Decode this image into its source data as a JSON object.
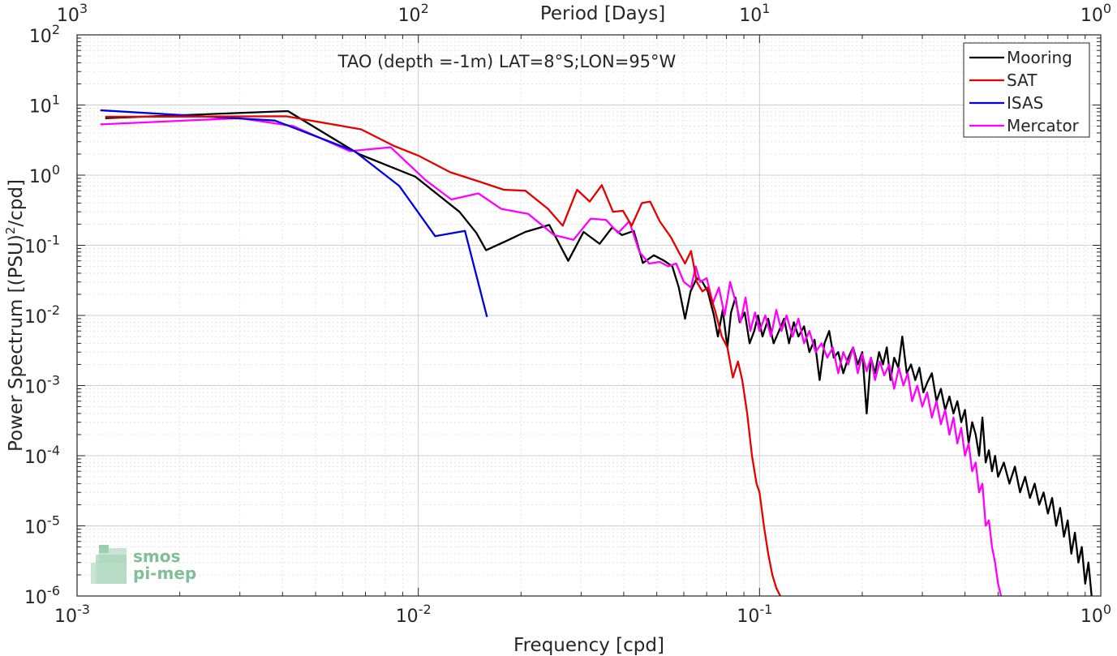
{
  "chart_data": {
    "type": "line",
    "title": "TAO (depth =-1m) LAT=8°S;LON=95°W",
    "xlabel": "Frequency [cpd]",
    "ylabel": "Power Spectrum [(PSU)",
    "ylabel_sup": "2",
    "ylabel_end": "/cpd]",
    "top_xlabel": "Period [Days]",
    "xscale": "log",
    "yscale": "log",
    "xlim": [
      0.001,
      1
    ],
    "ylim": [
      1e-06,
      100
    ],
    "grid": true,
    "legend_position": "top-right",
    "x_ticks": [
      0.001,
      0.01,
      0.1,
      1
    ],
    "x_tick_labels": [
      {
        "base": "10",
        "exp": "-3"
      },
      {
        "base": "10",
        "exp": "-2"
      },
      {
        "base": "10",
        "exp": "-1"
      },
      {
        "base": "10",
        "exp": "0"
      }
    ],
    "y_ticks": [
      100,
      10,
      1,
      0.1,
      0.01,
      0.001,
      0.0001,
      1e-05,
      1e-06
    ],
    "y_tick_labels": [
      {
        "base": "10",
        "exp": "2"
      },
      {
        "base": "10",
        "exp": "1"
      },
      {
        "base": "10",
        "exp": "0"
      },
      {
        "base": "10",
        "exp": "-1"
      },
      {
        "base": "10",
        "exp": "-2"
      },
      {
        "base": "10",
        "exp": "-3"
      },
      {
        "base": "10",
        "exp": "-4"
      },
      {
        "base": "10",
        "exp": "-5"
      },
      {
        "base": "10",
        "exp": "-6"
      }
    ],
    "top_ticks": [
      1000,
      100,
      10,
      1
    ],
    "top_tick_labels": [
      {
        "base": "10",
        "exp": "3"
      },
      {
        "base": "10",
        "exp": "2"
      },
      {
        "base": "10",
        "exp": "1"
      },
      {
        "base": "10",
        "exp": "0"
      }
    ],
    "series": [
      {
        "name": "Mooring",
        "color": "#000000",
        "points": [
          [
            0.00121,
            6.5
          ],
          [
            0.00415,
            8.2
          ],
          [
            0.0067,
            2.0
          ],
          [
            0.0098,
            0.95
          ],
          [
            0.0132,
            0.3
          ],
          [
            0.0148,
            0.15
          ],
          [
            0.0158,
            0.085
          ],
          [
            0.0181,
            0.115
          ],
          [
            0.0206,
            0.155
          ],
          [
            0.0242,
            0.195
          ],
          [
            0.0275,
            0.06
          ],
          [
            0.0305,
            0.155
          ],
          [
            0.034,
            0.105
          ],
          [
            0.037,
            0.18
          ],
          [
            0.0395,
            0.14
          ],
          [
            0.0428,
            0.16
          ],
          [
            0.0455,
            0.056
          ],
          [
            0.049,
            0.072
          ],
          [
            0.0526,
            0.06
          ],
          [
            0.0555,
            0.05
          ],
          [
            0.058,
            0.025
          ],
          [
            0.0605,
            0.009
          ],
          [
            0.0628,
            0.022
          ],
          [
            0.0655,
            0.034
          ],
          [
            0.068,
            0.03
          ],
          [
            0.0705,
            0.022
          ],
          [
            0.0735,
            0.01
          ],
          [
            0.0755,
            0.005
          ],
          [
            0.078,
            0.012
          ],
          [
            0.0805,
            0.0035
          ],
          [
            0.0825,
            0.011
          ],
          [
            0.085,
            0.018
          ],
          [
            0.0875,
            0.008
          ],
          [
            0.0905,
            0.011
          ],
          [
            0.0935,
            0.004
          ],
          [
            0.0965,
            0.006
          ],
          [
            0.099,
            0.01
          ],
          [
            0.102,
            0.005
          ],
          [
            0.106,
            0.009
          ],
          [
            0.11,
            0.004
          ],
          [
            0.114,
            0.006
          ],
          [
            0.118,
            0.009
          ],
          [
            0.122,
            0.004
          ],
          [
            0.126,
            0.008
          ],
          [
            0.13,
            0.005
          ],
          [
            0.135,
            0.007
          ],
          [
            0.14,
            0.003
          ],
          [
            0.145,
            0.0045
          ],
          [
            0.15,
            0.0012
          ],
          [
            0.155,
            0.004
          ],
          [
            0.16,
            0.006
          ],
          [
            0.165,
            0.0025
          ],
          [
            0.17,
            0.003
          ],
          [
            0.176,
            0.0015
          ],
          [
            0.182,
            0.0025
          ],
          [
            0.188,
            0.0035
          ],
          [
            0.194,
            0.002
          ],
          [
            0.2,
            0.003
          ],
          [
            0.206,
            0.0004
          ],
          [
            0.212,
            0.0025
          ],
          [
            0.218,
            0.0015
          ],
          [
            0.224,
            0.003
          ],
          [
            0.23,
            0.002
          ],
          [
            0.236,
            0.0035
          ],
          [
            0.242,
            0.0012
          ],
          [
            0.248,
            0.0025
          ],
          [
            0.255,
            0.0018
          ],
          [
            0.262,
            0.005
          ],
          [
            0.27,
            0.0015
          ],
          [
            0.278,
            0.002
          ],
          [
            0.286,
            0.0012
          ],
          [
            0.294,
            0.0018
          ],
          [
            0.302,
            0.0008
          ],
          [
            0.31,
            0.0011
          ],
          [
            0.32,
            0.0015
          ],
          [
            0.33,
            0.0006
          ],
          [
            0.34,
            0.0009
          ],
          [
            0.35,
            0.00045
          ],
          [
            0.36,
            0.0007
          ],
          [
            0.37,
            0.0004
          ],
          [
            0.38,
            0.0006
          ],
          [
            0.39,
            0.0003
          ],
          [
            0.4,
            0.00045
          ],
          [
            0.41,
            0.00015
          ],
          [
            0.42,
            0.0003
          ],
          [
            0.43,
            0.0002
          ],
          [
            0.44,
            0.0001
          ],
          [
            0.45,
            0.00035
          ],
          [
            0.46,
            8e-05
          ],
          [
            0.47,
            0.00012
          ],
          [
            0.48,
            6e-05
          ],
          [
            0.49,
            0.0001
          ],
          [
            0.5,
            5e-05
          ],
          [
            0.52,
            8e-05
          ],
          [
            0.54,
            4e-05
          ],
          [
            0.56,
            7e-05
          ],
          [
            0.58,
            3e-05
          ],
          [
            0.6,
            5e-05
          ],
          [
            0.62,
            2.5e-05
          ],
          [
            0.64,
            4e-05
          ],
          [
            0.66,
            2e-05
          ],
          [
            0.68,
            3e-05
          ],
          [
            0.7,
            1.5e-05
          ],
          [
            0.72,
            2.5e-05
          ],
          [
            0.74,
            1e-05
          ],
          [
            0.76,
            1.8e-05
          ],
          [
            0.78,
            7e-06
          ],
          [
            0.8,
            1.2e-05
          ],
          [
            0.82,
            4e-06
          ],
          [
            0.84,
            8e-06
          ],
          [
            0.86,
            3e-06
          ],
          [
            0.88,
            5e-06
          ],
          [
            0.9,
            1.5e-06
          ],
          [
            0.92,
            3e-06
          ],
          [
            0.94,
            1e-06
          ]
        ]
      },
      {
        "name": "SAT",
        "color": "#e60000",
        "points": [
          [
            0.00121,
            6.8
          ],
          [
            0.0041,
            6.9
          ],
          [
            0.0068,
            4.5
          ],
          [
            0.0085,
            2.6
          ],
          [
            0.01,
            1.9
          ],
          [
            0.0124,
            1.1
          ],
          [
            0.0152,
            0.8
          ],
          [
            0.0178,
            0.62
          ],
          [
            0.0206,
            0.6
          ],
          [
            0.024,
            0.33
          ],
          [
            0.0265,
            0.19
          ],
          [
            0.0292,
            0.62
          ],
          [
            0.0318,
            0.42
          ],
          [
            0.0345,
            0.72
          ],
          [
            0.0372,
            0.3
          ],
          [
            0.0398,
            0.31
          ],
          [
            0.0422,
            0.19
          ],
          [
            0.0452,
            0.4
          ],
          [
            0.0478,
            0.42
          ],
          [
            0.051,
            0.22
          ],
          [
            0.055,
            0.13
          ],
          [
            0.058,
            0.08
          ],
          [
            0.0605,
            0.055
          ],
          [
            0.063,
            0.083
          ],
          [
            0.0655,
            0.03
          ],
          [
            0.068,
            0.022
          ],
          [
            0.0705,
            0.025
          ],
          [
            0.074,
            0.012
          ],
          [
            0.0775,
            0.005
          ],
          [
            0.0805,
            0.0035
          ],
          [
            0.0835,
            0.0013
          ],
          [
            0.0865,
            0.0022
          ],
          [
            0.089,
            0.0012
          ],
          [
            0.092,
            0.0004
          ],
          [
            0.095,
            0.0001
          ],
          [
            0.098,
            4e-05
          ],
          [
            0.1,
            3e-05
          ],
          [
            0.103,
            1e-05
          ],
          [
            0.106,
            4e-06
          ],
          [
            0.109,
            2e-06
          ],
          [
            0.112,
            1.3e-06
          ],
          [
            0.115,
            1e-06
          ]
        ]
      },
      {
        "name": "ISAS",
        "color": "#0000e6",
        "points": [
          [
            0.00117,
            8.4
          ],
          [
            0.0038,
            6.0
          ],
          [
            0.0065,
            2.2
          ],
          [
            0.0088,
            0.7
          ],
          [
            0.0112,
            0.135
          ],
          [
            0.0137,
            0.16
          ],
          [
            0.0159,
            0.0095
          ]
        ]
      },
      {
        "name": "Mercator",
        "color": "#ff00ff",
        "points": [
          [
            0.00117,
            5.3
          ],
          [
            0.003,
            6.5
          ],
          [
            0.0043,
            5.0
          ],
          [
            0.0063,
            2.2
          ],
          [
            0.0083,
            2.5
          ],
          [
            0.0105,
            0.85
          ],
          [
            0.0125,
            0.45
          ],
          [
            0.015,
            0.55
          ],
          [
            0.0175,
            0.33
          ],
          [
            0.021,
            0.28
          ],
          [
            0.025,
            0.14
          ],
          [
            0.0285,
            0.12
          ],
          [
            0.032,
            0.24
          ],
          [
            0.0355,
            0.23
          ],
          [
            0.0385,
            0.15
          ],
          [
            0.0415,
            0.22
          ],
          [
            0.0445,
            0.08
          ],
          [
            0.0475,
            0.055
          ],
          [
            0.051,
            0.058
          ],
          [
            0.054,
            0.05
          ],
          [
            0.057,
            0.055
          ],
          [
            0.06,
            0.03
          ],
          [
            0.063,
            0.025
          ],
          [
            0.065,
            0.05
          ],
          [
            0.067,
            0.03
          ],
          [
            0.07,
            0.034
          ],
          [
            0.073,
            0.015
          ],
          [
            0.076,
            0.025
          ],
          [
            0.079,
            0.01
          ],
          [
            0.082,
            0.03
          ],
          [
            0.085,
            0.016
          ],
          [
            0.088,
            0.008
          ],
          [
            0.091,
            0.018
          ],
          [
            0.094,
            0.006
          ],
          [
            0.097,
            0.011
          ],
          [
            0.1,
            0.006
          ],
          [
            0.104,
            0.01
          ],
          [
            0.108,
            0.005
          ],
          [
            0.112,
            0.012
          ],
          [
            0.116,
            0.006
          ],
          [
            0.12,
            0.01
          ],
          [
            0.125,
            0.005
          ],
          [
            0.13,
            0.009
          ],
          [
            0.135,
            0.004
          ],
          [
            0.14,
            0.006
          ],
          [
            0.146,
            0.003
          ],
          [
            0.152,
            0.004
          ],
          [
            0.158,
            0.0025
          ],
          [
            0.164,
            0.0035
          ],
          [
            0.17,
            0.0015
          ],
          [
            0.176,
            0.003
          ],
          [
            0.182,
            0.002
          ],
          [
            0.188,
            0.0035
          ],
          [
            0.194,
            0.0015
          ],
          [
            0.2,
            0.0028
          ],
          [
            0.206,
            0.0016
          ],
          [
            0.212,
            0.0025
          ],
          [
            0.218,
            0.0012
          ],
          [
            0.225,
            0.0022
          ],
          [
            0.232,
            0.0014
          ],
          [
            0.24,
            0.002
          ],
          [
            0.248,
            0.0009
          ],
          [
            0.256,
            0.0018
          ],
          [
            0.264,
            0.001
          ],
          [
            0.272,
            0.0015
          ],
          [
            0.28,
            0.0006
          ],
          [
            0.29,
            0.001
          ],
          [
            0.3,
            0.0005
          ],
          [
            0.31,
            0.0008
          ],
          [
            0.32,
            0.00035
          ],
          [
            0.33,
            0.0006
          ],
          [
            0.34,
            0.00028
          ],
          [
            0.35,
            0.00045
          ],
          [
            0.36,
            0.0002
          ],
          [
            0.37,
            0.00035
          ],
          [
            0.38,
            0.00015
          ],
          [
            0.39,
            0.00025
          ],
          [
            0.4,
            0.0001
          ],
          [
            0.41,
            0.00015
          ],
          [
            0.42,
            6e-05
          ],
          [
            0.43,
            8e-05
          ],
          [
            0.44,
            3e-05
          ],
          [
            0.45,
            4e-05
          ],
          [
            0.46,
            1e-05
          ],
          [
            0.47,
            1.2e-05
          ],
          [
            0.48,
            5e-06
          ],
          [
            0.49,
            3e-06
          ],
          [
            0.5,
            1.5e-06
          ],
          [
            0.51,
            1e-06
          ]
        ]
      }
    ]
  },
  "watermark": {
    "line1": "smos",
    "line2": "pi-mep"
  }
}
